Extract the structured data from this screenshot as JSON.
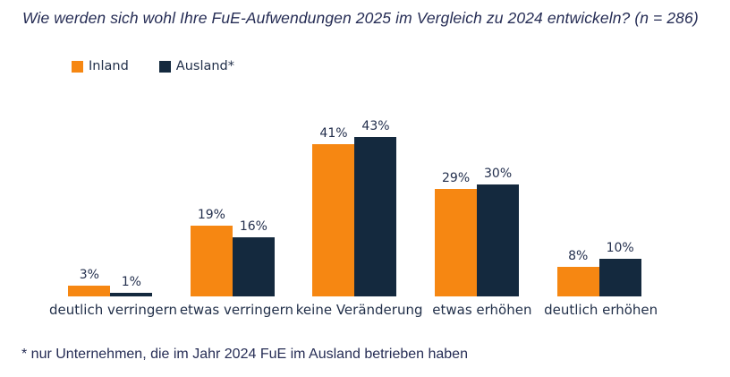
{
  "title": "Wie werden sich wohl Ihre FuE-Aufwendungen 2025 im Vergleich zu 2024 entwickeln? (n = 286)",
  "footnote": "* nur Unternehmen, die im Jahr 2024 FuE im Ausland betrieben haben",
  "colors": {
    "inland_orange": "#F68712",
    "ausland_navy": "#14293E",
    "text_navy": "#262D55"
  },
  "chart_data": {
    "type": "bar",
    "title": "Wie werden sich wohl Ihre FuE-Aufwendungen 2025 im Vergleich zu 2024 entwickeln? (n = 286)",
    "categories": [
      "deutlich verringern",
      "etwas verringern",
      "keine Veränderung",
      "etwas erhöhen",
      "deutlich erhöhen"
    ],
    "series": [
      {
        "name": "Inland",
        "color": "#F68712",
        "values": [
          3,
          19,
          41,
          29,
          8
        ],
        "value_labels": [
          "3%",
          "19%",
          "41%",
          "29%",
          "8%"
        ]
      },
      {
        "name": "Ausland*",
        "color": "#14293E",
        "values": [
          1,
          16,
          43,
          30,
          10
        ],
        "value_labels": [
          "1%",
          "16%",
          "43%",
          "30%",
          "10%"
        ]
      }
    ],
    "unit": "%",
    "ylim": [
      0,
      45
    ],
    "grid": false,
    "axes_visible": false,
    "value_labels_position": "above-bars",
    "legend_position": "top-left"
  }
}
